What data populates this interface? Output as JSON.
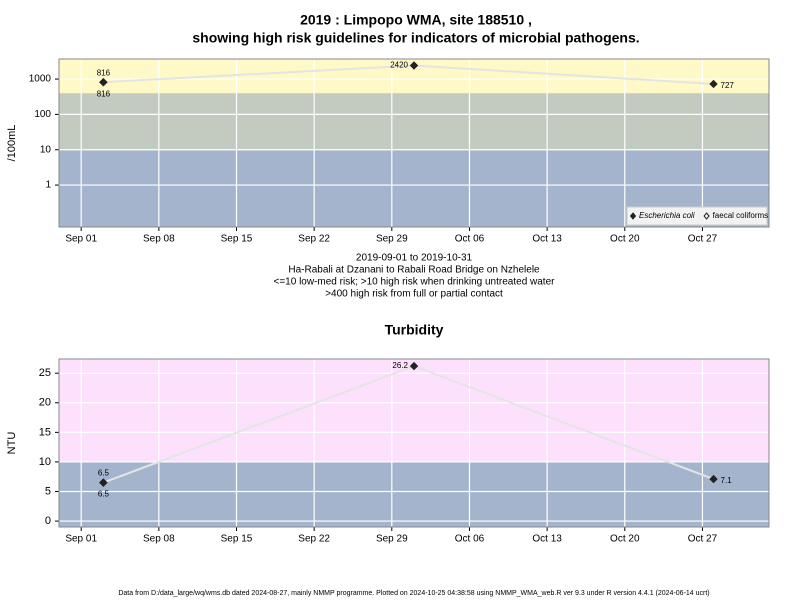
{
  "title_lines": [
    "2019 : Limpopo WMA, site 188510 ,",
    "showing high risk guidelines for indicators of microbial pathogens."
  ],
  "chart_data": [
    {
      "type": "line",
      "ylabel": "/100mL",
      "log": true,
      "subtitle": [
        "2019-09-01 to 2019-10-31",
        "Ha-Rabali at Dzanani to Rabali Road Bridge on Nzhelele",
        "<=10 low-med risk; >10 high risk when drinking untreated water",
        ">400 high risk from full or partial contact"
      ],
      "x": [
        "2019-09-03",
        "2019-10-01",
        "2019-10-28"
      ],
      "xlim": [
        "2019-08-30",
        "2019-11-02"
      ],
      "xticks": [
        {
          "value": "2019-09-01",
          "label": "Sep 01"
        },
        {
          "value": "2019-09-08",
          "label": "Sep 08"
        },
        {
          "value": "2019-09-15",
          "label": "Sep 15"
        },
        {
          "value": "2019-09-22",
          "label": "Sep 22"
        },
        {
          "value": "2019-09-29",
          "label": "Sep 29"
        },
        {
          "value": "2019-10-06",
          "label": "Oct 06"
        },
        {
          "value": "2019-10-13",
          "label": "Oct 13"
        },
        {
          "value": "2019-10-20",
          "label": "Oct 20"
        },
        {
          "value": "2019-10-27",
          "label": "Oct 27"
        }
      ],
      "ylim": [
        0.065,
        3700
      ],
      "yticks": [
        1,
        10,
        100,
        1000
      ],
      "bands": [
        {
          "from": 0.065,
          "to": 10,
          "color": "#a3b4cc"
        },
        {
          "from": 10,
          "to": 400,
          "color": "#c3cbc0"
        },
        {
          "from": 400,
          "to": 3700,
          "color": "#fff9c8"
        }
      ],
      "series": [
        {
          "name": "Escherichia coli",
          "color": "#222222",
          "values": [
            816,
            2420,
            727
          ]
        },
        {
          "name": "faecal coliforms",
          "color": "#222222",
          "values": [
            816,
            null,
            null
          ]
        }
      ],
      "legend": "bottom-right",
      "grid": true
    },
    {
      "type": "line",
      "title": "Turbidity",
      "ylabel": "NTU",
      "log": false,
      "x": [
        "2019-09-03",
        "2019-10-01",
        "2019-10-28"
      ],
      "xlim": [
        "2019-08-30",
        "2019-11-02"
      ],
      "xticks": [
        {
          "value": "2019-09-01",
          "label": "Sep 01"
        },
        {
          "value": "2019-09-08",
          "label": "Sep 08"
        },
        {
          "value": "2019-09-15",
          "label": "Sep 15"
        },
        {
          "value": "2019-09-22",
          "label": "Sep 22"
        },
        {
          "value": "2019-09-29",
          "label": "Sep 29"
        },
        {
          "value": "2019-10-06",
          "label": "Oct 06"
        },
        {
          "value": "2019-10-13",
          "label": "Oct 13"
        },
        {
          "value": "2019-10-20",
          "label": "Oct 20"
        },
        {
          "value": "2019-10-27",
          "label": "Oct 27"
        }
      ],
      "ylim": [
        -1,
        27.4
      ],
      "yticks": [
        0,
        5,
        10,
        15,
        20,
        25
      ],
      "bands": [
        {
          "from": -1,
          "to": 10,
          "color": "#a3b4cc"
        },
        {
          "from": 10,
          "to": 27.4,
          "color": "#fde0fc"
        }
      ],
      "series": [
        {
          "color": "#222222",
          "values": [
            6.5,
            26.2,
            7.1
          ]
        },
        {
          "color": "#222222",
          "values": [
            6.5,
            null,
            null
          ]
        }
      ],
      "grid": true
    }
  ],
  "footer": "Data from D:/data_large/wq/wms.db dated 2024-08-27, mainly NMMP programme. Plotted on 2024-10-25 04:38:58 using NMMP_WMA_web.R ver 9.3 under R version 4.4.1 (2024-06-14 ucrt)"
}
